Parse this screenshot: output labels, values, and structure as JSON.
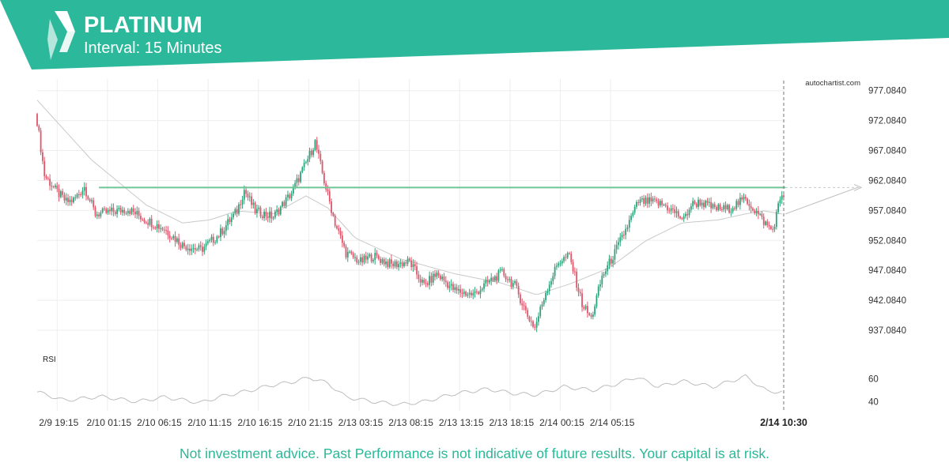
{
  "header": {
    "instrument": "PLATINUM",
    "interval_label": "Interval: 15 Minutes",
    "brand_color": "#2bb89b"
  },
  "watermark": "autochartist.com",
  "disclaimer": "Not investment advice. Past Performance is not indicative of future results. Your capital is at risk.",
  "chart_data": {
    "type": "candlestick",
    "price_axis": {
      "ticks": [
        "977.0840",
        "972.0840",
        "967.0840",
        "962.0840",
        "957.0840",
        "952.0840",
        "947.0840",
        "942.0840",
        "937.0840"
      ],
      "range": [
        935.5,
        978.5
      ],
      "position": "right"
    },
    "time_axis": {
      "ticks": [
        "2/9 19:15",
        "2/10 01:15",
        "2/10 06:15",
        "2/10 11:15",
        "2/10 16:15",
        "2/10 21:15",
        "2/13 03:15",
        "2/13 08:15",
        "2/13 13:15",
        "2/13 18:15",
        "2/14 00:15",
        "2/14 05:15"
      ],
      "current_label": "2/14 10:30"
    },
    "resistance_level": 960.9,
    "projection_target": 960.9,
    "price_path": [
      [
        0,
        972.0
      ],
      [
        4,
        963.0
      ],
      [
        10,
        960.5
      ],
      [
        16,
        958.5
      ],
      [
        20,
        958.8
      ],
      [
        26,
        961.0
      ],
      [
        32,
        956.5
      ],
      [
        40,
        956.8
      ],
      [
        50,
        957.3
      ],
      [
        60,
        955.5
      ],
      [
        70,
        954.0
      ],
      [
        80,
        951.3
      ],
      [
        90,
        950.5
      ],
      [
        100,
        953.0
      ],
      [
        110,
        957.0
      ],
      [
        114,
        960.5
      ],
      [
        120,
        957.0
      ],
      [
        130,
        956.0
      ],
      [
        140,
        960.0
      ],
      [
        148,
        965.0
      ],
      [
        153,
        968.5
      ],
      [
        158,
        962.0
      ],
      [
        164,
        955.0
      ],
      [
        170,
        950.0
      ],
      [
        178,
        948.5
      ],
      [
        185,
        949.5
      ],
      [
        195,
        948.0
      ],
      [
        205,
        948.5
      ],
      [
        213,
        944.5
      ],
      [
        220,
        946.5
      ],
      [
        230,
        943.7
      ],
      [
        240,
        943.0
      ],
      [
        248,
        945.0
      ],
      [
        256,
        946.7
      ],
      [
        263,
        944.5
      ],
      [
        270,
        939.5
      ],
      [
        274,
        937.5
      ],
      [
        280,
        943.5
      ],
      [
        287,
        948.5
      ],
      [
        293,
        949.5
      ],
      [
        300,
        941.5
      ],
      [
        305,
        939.0
      ],
      [
        311,
        946.0
      ],
      [
        318,
        950.0
      ],
      [
        325,
        954.5
      ],
      [
        331,
        958.5
      ],
      [
        338,
        958.5
      ],
      [
        345,
        958.0
      ],
      [
        350,
        957.0
      ],
      [
        356,
        955.5
      ],
      [
        360,
        958.0
      ],
      [
        365,
        958.5
      ],
      [
        372,
        957.5
      ],
      [
        380,
        957.3
      ],
      [
        390,
        959.0
      ],
      [
        394,
        957.5
      ],
      [
        398,
        956.0
      ],
      [
        402,
        954.5
      ],
      [
        405,
        953.8
      ],
      [
        409,
        959.0
      ],
      [
        410,
        959.8
      ]
    ],
    "ma_path": [
      [
        0,
        975.5
      ],
      [
        30,
        965.5
      ],
      [
        60,
        958.0
      ],
      [
        80,
        955.0
      ],
      [
        95,
        955.5
      ],
      [
        110,
        957.0
      ],
      [
        130,
        956.5
      ],
      [
        148,
        959.5
      ],
      [
        160,
        957.5
      ],
      [
        175,
        952.5
      ],
      [
        200,
        949.0
      ],
      [
        230,
        946.5
      ],
      [
        255,
        945.0
      ],
      [
        275,
        943.0
      ],
      [
        295,
        945.0
      ],
      [
        315,
        947.5
      ],
      [
        335,
        952.0
      ],
      [
        355,
        955.0
      ],
      [
        375,
        955.5
      ],
      [
        390,
        956.5
      ],
      [
        400,
        957.0
      ],
      [
        410,
        956.5
      ]
    ],
    "rsi": {
      "label": "RSI",
      "ticks": [
        "60",
        "40"
      ],
      "range": [
        32,
        72
      ],
      "path": [
        [
          0,
          48.5
        ],
        [
          15,
          41
        ],
        [
          35,
          44.5
        ],
        [
          55,
          40
        ],
        [
          70,
          44
        ],
        [
          90,
          39
        ],
        [
          100,
          44
        ],
        [
          118,
          50
        ],
        [
          128,
          54
        ],
        [
          140,
          57
        ],
        [
          150,
          61
        ],
        [
          160,
          56
        ],
        [
          170,
          44
        ],
        [
          185,
          40
        ],
        [
          200,
          37.5
        ],
        [
          213,
          40
        ],
        [
          230,
          47
        ],
        [
          248,
          51
        ],
        [
          263,
          47
        ],
        [
          275,
          46
        ],
        [
          290,
          53
        ],
        [
          306,
          50
        ],
        [
          318,
          55
        ],
        [
          330,
          61.5
        ],
        [
          342,
          53
        ],
        [
          355,
          58
        ],
        [
          372,
          53
        ],
        [
          390,
          62
        ],
        [
          402,
          49
        ],
        [
          410,
          48.5
        ]
      ]
    }
  }
}
